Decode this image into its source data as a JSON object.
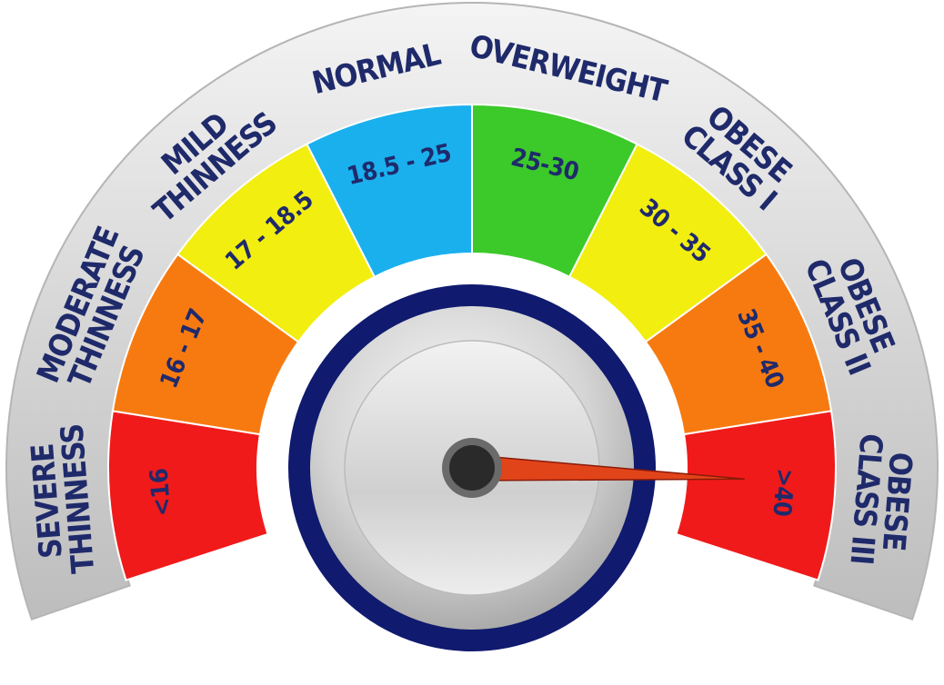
{
  "gauge": {
    "segments": [
      {
        "category": [
          "SEVERE",
          "THINNESS"
        ],
        "range": "<16",
        "color": "#f01a1a"
      },
      {
        "category": [
          "MODERATE",
          "THINNESS"
        ],
        "range": "16 - 17",
        "color": "#f77a10"
      },
      {
        "category": [
          "MILD",
          "THINNESS"
        ],
        "range": "17 - 18.5",
        "color": "#f2ee10"
      },
      {
        "category": [
          "NORMAL"
        ],
        "range": "18.5 - 25",
        "color": "#1ab0ee"
      },
      {
        "category": [
          "OVERWEIGHT"
        ],
        "range": "25-30",
        "color": "#3cc92a"
      },
      {
        "category": [
          "OBESE",
          "CLASS I"
        ],
        "range": "30 - 35",
        "color": "#f2ee10"
      },
      {
        "category": [
          "OBESE",
          "CLASS II"
        ],
        "range": "35 - 40",
        "color": "#f77a10"
      },
      {
        "category": [
          "OBESE",
          "CLASS III"
        ],
        "range": ">40",
        "color": "#f01a1a"
      }
    ],
    "needle_segment": 7,
    "colors": {
      "text": "#1f2a6b",
      "ring_dark": "#101a6e",
      "needle": "#e2441a",
      "hub": "#2a2a2a"
    }
  }
}
